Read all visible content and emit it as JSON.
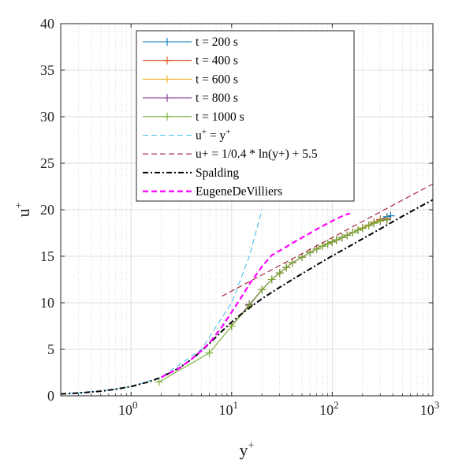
{
  "chart_data": {
    "type": "line",
    "x_scale": "log",
    "xlim": [
      0.2,
      1000
    ],
    "ylim": [
      0,
      40
    ],
    "grid": true,
    "legend_placement": "top-center",
    "xlabel": {
      "base": "y",
      "sup": "+"
    },
    "ylabel": {
      "base": "u",
      "sup": "+"
    },
    "x_ticks": [
      {
        "value": 1,
        "base": "10",
        "exp": "0"
      },
      {
        "value": 10,
        "base": "10",
        "exp": "1"
      },
      {
        "value": 100,
        "base": "10",
        "exp": "2"
      },
      {
        "value": 1000,
        "base": "10",
        "exp": "3"
      }
    ],
    "y_ticks": [
      0,
      5,
      10,
      15,
      20,
      25,
      30,
      35,
      40
    ],
    "series": [
      {
        "name": "t = 200 s",
        "color": "#0072bd",
        "style": "solid",
        "marker": "+",
        "x": [
          10,
          15,
          20,
          25,
          30,
          35,
          40,
          50,
          60,
          70,
          80,
          90,
          100,
          110,
          125,
          140,
          160,
          180,
          200,
          230,
          260,
          300,
          350,
          380
        ],
        "y": [
          7.5,
          9.8,
          11.4,
          12.5,
          13.2,
          13.8,
          14.3,
          14.9,
          15.4,
          15.8,
          16.1,
          16.35,
          16.55,
          16.75,
          17.0,
          17.25,
          17.55,
          17.8,
          18.05,
          18.35,
          18.65,
          18.95,
          19.25,
          19.35
        ]
      },
      {
        "name": "t = 400 s",
        "color": "#d95319",
        "style": "solid",
        "marker": "+",
        "x": [
          10,
          15,
          20,
          25,
          30,
          35,
          40,
          50,
          60,
          70,
          80,
          90,
          100,
          110,
          125,
          140,
          160,
          180,
          200,
          230,
          260,
          300,
          350
        ],
        "y": [
          7.5,
          9.8,
          11.4,
          12.5,
          13.2,
          13.8,
          14.3,
          14.9,
          15.4,
          15.8,
          16.1,
          16.35,
          16.55,
          16.75,
          17.0,
          17.25,
          17.55,
          17.8,
          18.05,
          18.35,
          18.65,
          18.95,
          19.05
        ]
      },
      {
        "name": "t = 600 s",
        "color": "#edb120",
        "style": "solid",
        "marker": "+",
        "x": [
          10,
          15,
          20,
          25,
          30,
          35,
          40,
          50,
          60,
          70,
          80,
          90,
          100,
          110,
          125,
          140,
          160,
          180,
          200,
          230,
          260,
          300,
          350
        ],
        "y": [
          7.5,
          9.8,
          11.4,
          12.5,
          13.2,
          13.8,
          14.3,
          14.9,
          15.4,
          15.8,
          16.1,
          16.35,
          16.55,
          16.75,
          17.0,
          17.25,
          17.55,
          17.8,
          18.05,
          18.35,
          18.6,
          18.85,
          19.0
        ]
      },
      {
        "name": "t = 800 s",
        "color": "#7e2f8e",
        "style": "solid",
        "marker": "+",
        "x": [
          10,
          15,
          20,
          25,
          30,
          35,
          40,
          50,
          60,
          70,
          80,
          90,
          100,
          110,
          125,
          140,
          160,
          180,
          200,
          230,
          260,
          300,
          350
        ],
        "y": [
          7.5,
          9.8,
          11.4,
          12.5,
          13.2,
          13.8,
          14.3,
          14.9,
          15.4,
          15.8,
          16.1,
          16.35,
          16.55,
          16.75,
          17.0,
          17.25,
          17.55,
          17.8,
          18.0,
          18.3,
          18.55,
          18.8,
          18.95
        ]
      },
      {
        "name": "t = 1000 s",
        "color": "#77ac30",
        "style": "solid",
        "marker": "+",
        "x": [
          1.9,
          6.0,
          10,
          15,
          20,
          25,
          30,
          35,
          40,
          50,
          60,
          70,
          80,
          90,
          100,
          110,
          125,
          140,
          160,
          180,
          200,
          230,
          260,
          300,
          350
        ],
        "y": [
          1.5,
          4.6,
          7.5,
          9.7,
          11.4,
          12.5,
          13.2,
          13.8,
          14.3,
          14.9,
          15.4,
          15.8,
          16.1,
          16.35,
          16.55,
          16.75,
          17.0,
          17.25,
          17.55,
          17.8,
          18.0,
          18.3,
          18.55,
          18.8,
          18.9
        ]
      },
      {
        "name": "u⁺ = y⁺",
        "color": "#4dbeee",
        "style": "dashed",
        "marker": "none",
        "x": [
          0.2,
          0.5,
          1,
          2,
          5,
          10,
          15,
          20
        ],
        "y": [
          0.2,
          0.5,
          1,
          2,
          5,
          10,
          15,
          20
        ]
      },
      {
        "name": "u+ = 1/0.4 * ln(y+) + 5.5",
        "color": "#a2142f",
        "style": "dashed",
        "marker": "none",
        "x": [
          8,
          10,
          20,
          50,
          100,
          200,
          500,
          1000
        ],
        "y": [
          10.7,
          11.26,
          12.99,
          15.28,
          17.01,
          18.75,
          21.04,
          22.77
        ]
      },
      {
        "name": "Spalding",
        "color": "#000000",
        "style": "dashdot",
        "marker": "none",
        "x": [
          0.2,
          0.3,
          0.5,
          0.7,
          1,
          1.5,
          2,
          3,
          4,
          5,
          6,
          7,
          8,
          10,
          12,
          15,
          20,
          25,
          30,
          40,
          50,
          70,
          100,
          150,
          200,
          300,
          500,
          700,
          1000
        ],
        "y": [
          0.2,
          0.3,
          0.5,
          0.7,
          1.0,
          1.5,
          2.0,
          2.98,
          3.93,
          4.82,
          5.62,
          6.33,
          6.94,
          7.92,
          8.64,
          9.45,
          10.43,
          11.12,
          11.66,
          12.49,
          13.12,
          14.07,
          15.04,
          16.11,
          16.87,
          17.94,
          19.31,
          20.18,
          21.07
        ]
      },
      {
        "name": "EugeneDeVilliers",
        "color": "#ff00ff",
        "style": "dashed",
        "marker": "none",
        "x": [
          2,
          3,
          4,
          5,
          6,
          7,
          8,
          10,
          12,
          15,
          20,
          25,
          30,
          40,
          50,
          70,
          100,
          130,
          150
        ],
        "y": [
          2.0,
          2.95,
          3.95,
          4.85,
          5.7,
          6.6,
          7.4,
          9.0,
          10.3,
          12.0,
          13.9,
          15.1,
          15.6,
          16.4,
          17.0,
          17.9,
          18.8,
          19.4,
          19.6
        ]
      }
    ]
  }
}
